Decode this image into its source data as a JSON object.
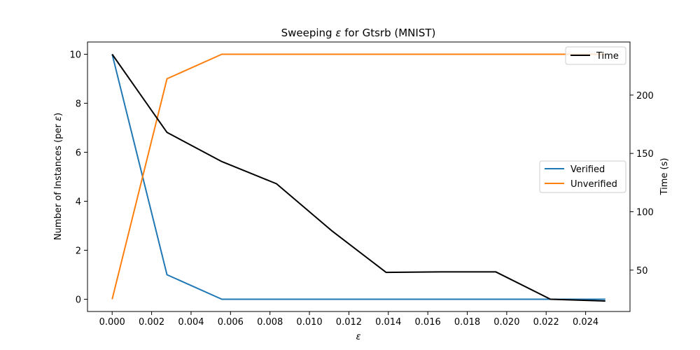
{
  "chart_data": {
    "type": "line",
    "title_prefix": "Sweeping ",
    "title_symbol": "ε",
    "title_suffix": " for Gtsrb (MNIST)",
    "xlabel": "ε",
    "ylabel_left_prefix": "Number of Instances (per ",
    "ylabel_left_symbol": "ε",
    "ylabel_left_suffix": ")",
    "ylabel_right": "Time (s)",
    "xlim": [
      -0.00125,
      0.02625
    ],
    "ylim_left": [
      -0.5,
      10.5
    ],
    "ylim_right": [
      14.5,
      245.5
    ],
    "x_ticks": [
      0.0,
      0.002,
      0.004,
      0.006,
      0.008,
      0.01,
      0.012,
      0.014,
      0.016,
      0.018,
      0.02,
      0.022,
      0.024
    ],
    "x_tick_labels": [
      "0.000",
      "0.002",
      "0.004",
      "0.006",
      "0.008",
      "0.010",
      "0.012",
      "0.014",
      "0.016",
      "0.018",
      "0.020",
      "0.022",
      "0.024"
    ],
    "y_left_ticks": [
      0,
      2,
      4,
      6,
      8,
      10
    ],
    "y_left_tick_labels": [
      "0",
      "2",
      "4",
      "6",
      "8",
      "10"
    ],
    "y_right_ticks": [
      50,
      100,
      150,
      200
    ],
    "y_right_tick_labels": [
      "50",
      "100",
      "150",
      "200"
    ],
    "x": [
      0.0,
      0.00278,
      0.00556,
      0.00833,
      0.01111,
      0.01389,
      0.01667,
      0.01944,
      0.02222,
      0.025
    ],
    "series": [
      {
        "name": "Verified",
        "axis": "left",
        "color": "#1f77b4",
        "values": [
          10,
          1,
          0,
          0,
          0,
          0,
          0,
          0,
          0,
          0
        ]
      },
      {
        "name": "Unverified",
        "axis": "left",
        "color": "#ff7f0e",
        "values": [
          0,
          9,
          10,
          10,
          10,
          10,
          10,
          10,
          10,
          10
        ]
      },
      {
        "name": "Time",
        "axis": "right",
        "color": "#000000",
        "values": [
          235,
          168,
          143,
          124,
          84,
          48,
          48.5,
          48.5,
          25,
          23.5
        ]
      }
    ],
    "legend_left_position": "center-right",
    "legend_right_position": "upper-right",
    "grid": false
  }
}
